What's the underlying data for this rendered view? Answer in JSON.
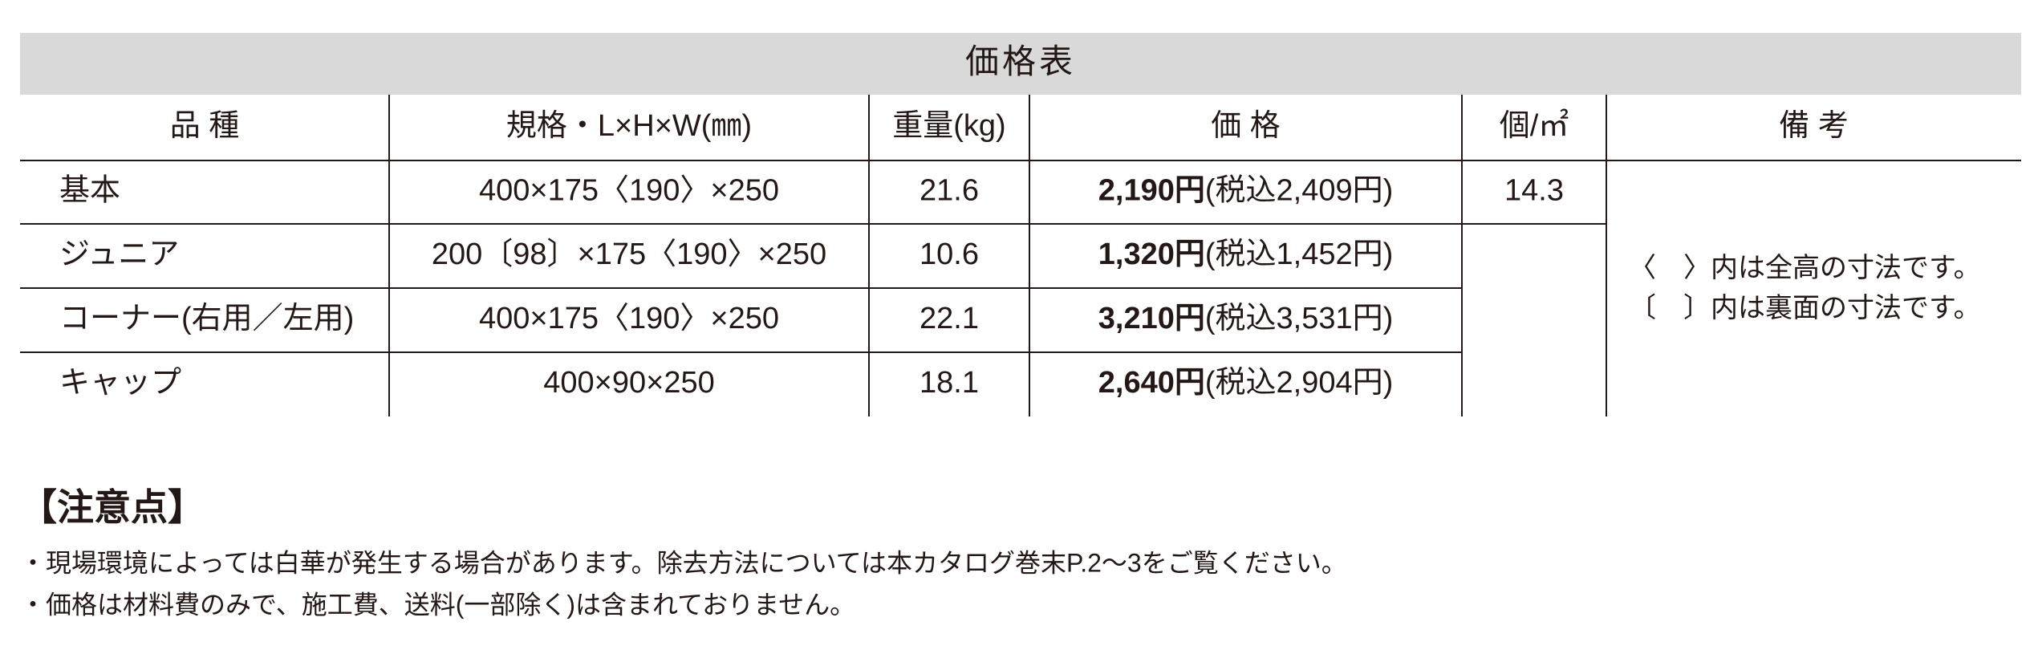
{
  "title": "価格表",
  "table": {
    "headers": [
      "品 種",
      "規格・L×H×W(㎜)",
      "重量(kg)",
      "価 格",
      "個/㎡",
      "備 考"
    ],
    "rows": [
      {
        "type": "基本",
        "size": "400×175〈190〉×250",
        "weight": "21.6",
        "price": "2,190円",
        "price_tax": "(税込2,409円)"
      },
      {
        "type": "ジュニア",
        "size": "200〔98〕×175〈190〉×250",
        "weight": "10.6",
        "price": "1,320円",
        "price_tax": "(税込1,452円)"
      },
      {
        "type": "コーナー(右用／左用)",
        "size": "400×175〈190〉×250",
        "weight": "22.1",
        "price": "3,210円",
        "price_tax": "(税込3,531円)"
      },
      {
        "type": "キャップ",
        "size": "400×90×250",
        "weight": "18.1",
        "price": "2,640円",
        "price_tax": "(税込2,904円)"
      }
    ],
    "per_sqm": "14.3",
    "remarks": [
      "〈　〉内は全高の寸法です。",
      "〔　〕内は裏面の寸法です。"
    ]
  },
  "notes": {
    "heading": "【注意点】",
    "items": [
      "・現場環境によっては白華が発生する場合があります。除去方法については本カタログ巻末P.2～3をご覧ください。",
      "・価格は材料費のみで、施工費、送料(一部除く)は含まれておりません。"
    ]
  }
}
